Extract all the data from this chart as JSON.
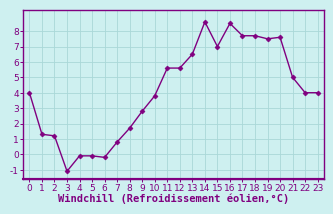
{
  "x": [
    0,
    1,
    2,
    3,
    4,
    5,
    6,
    7,
    8,
    9,
    10,
    11,
    12,
    13,
    14,
    15,
    16,
    17,
    18,
    19,
    20,
    21,
    22,
    23
  ],
  "y": [
    4,
    1.3,
    1.2,
    -1.1,
    -0.1,
    -0.1,
    -0.2,
    0.8,
    1.7,
    2.8,
    3.8,
    5.6,
    5.6,
    6.5,
    8.6,
    7.0,
    8.5,
    7.7,
    7.7,
    7.5,
    7.6,
    5.0,
    4.0,
    4.0
  ],
  "line_color": "#800080",
  "marker": "D",
  "marker_size": 2.5,
  "bg_color": "#cef0f0",
  "grid_color": "#aad8d8",
  "xlabel": "Windchill (Refroidissement éolien,°C)",
  "xlabel_fontsize": 7.5,
  "xlim": [
    -0.5,
    23.5
  ],
  "ylim": [
    -1.6,
    9.4
  ],
  "yticks": [
    -1,
    0,
    1,
    2,
    3,
    4,
    5,
    6,
    7,
    8
  ],
  "xticks": [
    0,
    1,
    2,
    3,
    4,
    5,
    6,
    7,
    8,
    9,
    10,
    11,
    12,
    13,
    14,
    15,
    16,
    17,
    18,
    19,
    20,
    21,
    22,
    23
  ],
  "tick_fontsize": 6.5,
  "linewidth": 1.0,
  "spine_color": "#800080",
  "bottom_bar_color": "#800080",
  "bottom_text_bg": "#ffffff"
}
